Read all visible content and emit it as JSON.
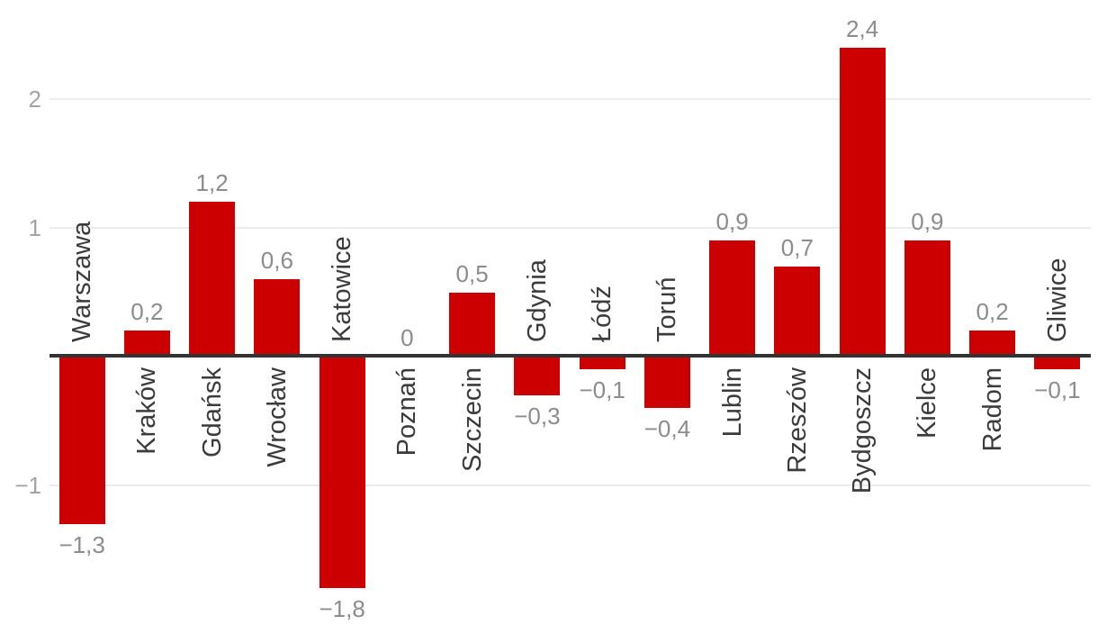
{
  "chart_data": {
    "type": "bar",
    "title": "",
    "xlabel": "",
    "ylabel": "",
    "categories": [
      "Warszawa",
      "Kraków",
      "Gdańsk",
      "Wrocław",
      "Katowice",
      "Poznań",
      "Szczecin",
      "Gdynia",
      "Łódź",
      "Toruń",
      "Lublin",
      "Rzeszów",
      "Bydgoszcz",
      "Kielce",
      "Radom",
      "Gliwice"
    ],
    "values": [
      -1.3,
      0.2,
      1.2,
      0.6,
      -1.8,
      0,
      0.5,
      -0.3,
      -0.1,
      -0.4,
      0.9,
      0.7,
      2.4,
      0.9,
      0.2,
      -0.1
    ],
    "value_labels": [
      "−1,3",
      "0,2",
      "1,2",
      "0,6",
      "−1,8",
      "0",
      "0,5",
      "−0,3",
      "−0,1",
      "−0,4",
      "0,9",
      "0,7",
      "2,4",
      "0,9",
      "0,2",
      "−0,1"
    ],
    "y_ticks": [
      {
        "value": 2,
        "label": "2"
      },
      {
        "value": 1,
        "label": "1"
      },
      {
        "value": -1,
        "label": "−1"
      }
    ],
    "ylim": [
      -2.1,
      2.75
    ],
    "grid": true,
    "legend": false,
    "bar_color": "#cc0000"
  },
  "colors": {
    "bar": "#cc0000",
    "axis_line": "#333333",
    "gridline": "#ececec",
    "value_label": "#8c8c8c",
    "tick_label": "#a3a3a3",
    "category_label": "#3b3b3b",
    "background": "#ffffff"
  }
}
